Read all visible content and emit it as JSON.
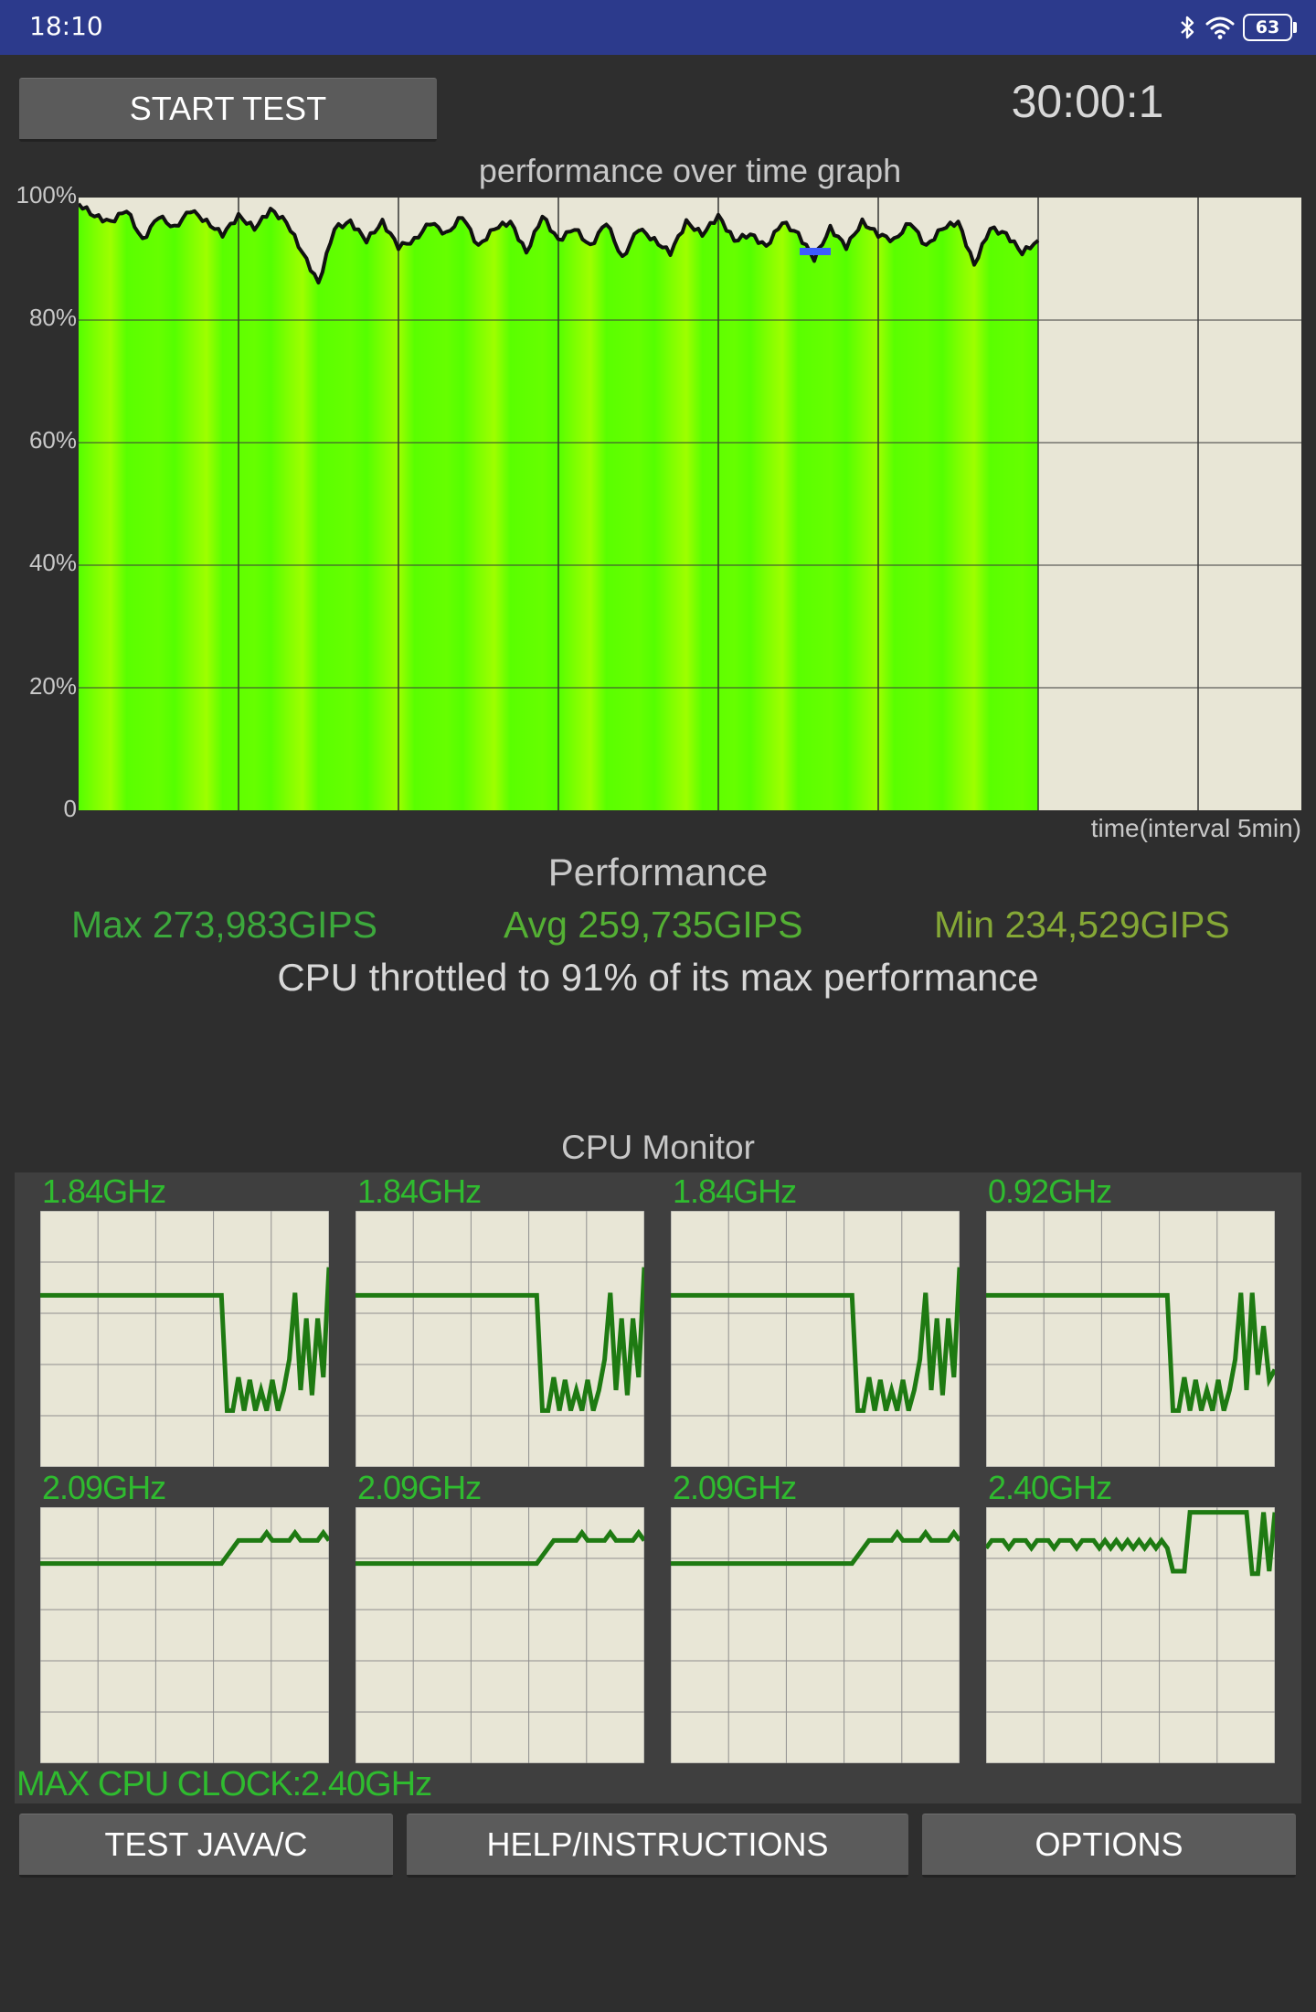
{
  "status_bar": {
    "time": "18:10",
    "battery": "63",
    "icons": [
      "bluetooth-icon",
      "wifi-icon",
      "battery-icon"
    ]
  },
  "controls": {
    "start_label": "START TEST",
    "timer": "30:00:1"
  },
  "graph": {
    "title": "performance over time graph",
    "y_ticks": [
      "100%",
      "80%",
      "60%",
      "40%",
      "20%",
      "0"
    ],
    "x_label": "time(interval 5min)"
  },
  "performance": {
    "title": "Performance",
    "max": "Max 273,983GIPS",
    "avg": "Avg 259,735GIPS",
    "min": "Min 234,529GIPS",
    "throttle": "CPU throttled to 91% of its max performance"
  },
  "cpu_monitor": {
    "title": "CPU Monitor",
    "cores": [
      {
        "freq": "1.84GHz"
      },
      {
        "freq": "1.84GHz"
      },
      {
        "freq": "1.84GHz"
      },
      {
        "freq": "0.92GHz"
      },
      {
        "freq": "2.09GHz"
      },
      {
        "freq": "2.09GHz"
      },
      {
        "freq": "2.09GHz"
      },
      {
        "freq": "2.40GHz"
      }
    ],
    "max_clock": "MAX CPU CLOCK:2.40GHz"
  },
  "buttons": {
    "test": "TEST JAVA/C",
    "help": "HELP/INSTRUCTIONS",
    "options": "OPTIONS"
  },
  "colors": {
    "status_bar": "#2c3a8c",
    "background": "#2e2e2e",
    "graph_fill": "#5cff00",
    "graph_bg": "#e8e6d6",
    "core_line": "#1e7a12",
    "freq_text": "#2fbb2f",
    "max_stat": "#3ca83c",
    "avg_stat": "#54b034",
    "min_stat": "#85a836"
  },
  "chart_data": {
    "type": "area",
    "title": "performance over time graph",
    "xlabel": "time(interval 5min)",
    "ylabel": "",
    "ylim": [
      0,
      100
    ],
    "x_range_minutes": [
      0,
      30
    ],
    "grid": true,
    "series": [
      {
        "x": [
          0,
          0.5,
          1,
          1.5,
          2,
          2.5,
          3,
          3.5,
          4,
          4.5,
          5,
          5.5,
          6,
          6.5,
          7,
          7.5,
          8,
          8.5,
          9,
          9.5,
          10,
          10.5,
          11,
          11.5,
          12,
          12.5,
          13,
          13.5,
          14,
          14.5,
          15,
          15.5,
          16,
          16.5,
          17,
          17.5,
          18,
          18.5,
          19,
          19.5,
          20,
          20.5,
          21,
          21.5,
          22,
          22.5,
          23,
          23.5,
          24,
          24.5,
          25,
          25.5,
          26,
          26.5,
          27,
          27.5,
          28,
          28.5,
          29,
          29.5,
          30
        ],
        "values": [
          99,
          97,
          96,
          98,
          93,
          97,
          95,
          98,
          96,
          94,
          97,
          95,
          98,
          96,
          91,
          86,
          95,
          96,
          93,
          96,
          92,
          93,
          96,
          94,
          97,
          92,
          95,
          96,
          91,
          97,
          93,
          95,
          92,
          96,
          90,
          95,
          93,
          91,
          96,
          94,
          97,
          93,
          94,
          92,
          96,
          94,
          90,
          95,
          92,
          96,
          94,
          93,
          96,
          92,
          95,
          96,
          89,
          95,
          94,
          91,
          93
        ]
      }
    ]
  }
}
